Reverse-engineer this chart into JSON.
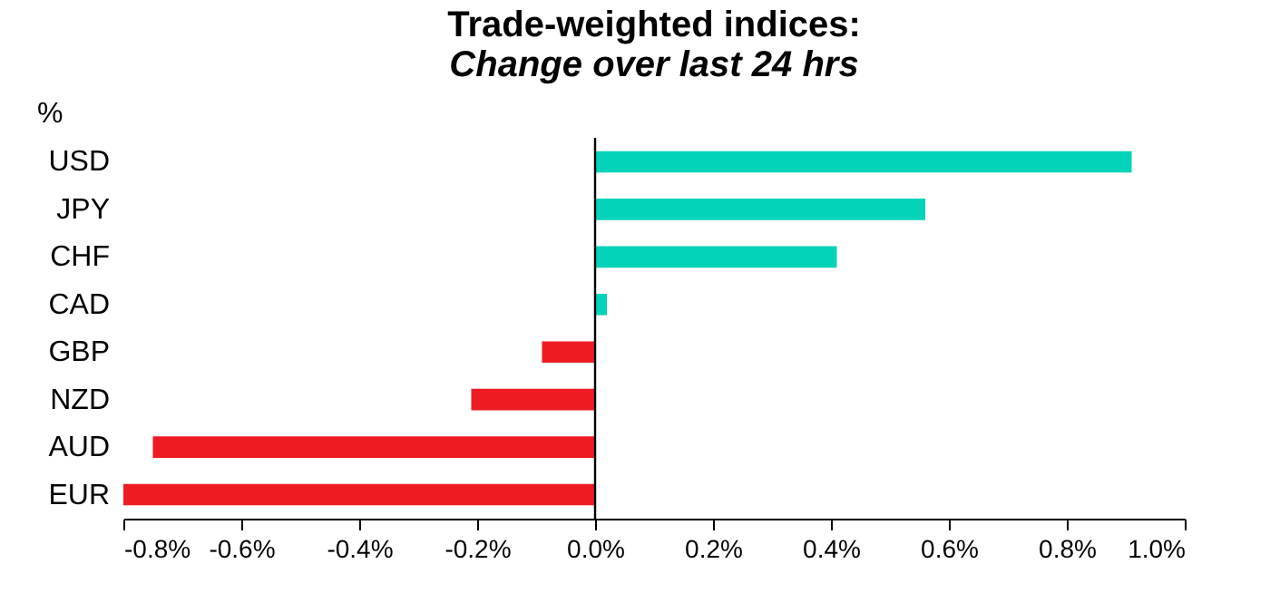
{
  "chart_data": {
    "type": "bar",
    "orientation": "horizontal",
    "title": "Trade-weighted indices:",
    "subtitle": "Change over last 24 hrs",
    "ylabel": "%",
    "categories": [
      "USD",
      "JPY",
      "CHF",
      "CAD",
      "GBP",
      "NZD",
      "AUD",
      "EUR"
    ],
    "values": [
      0.91,
      0.56,
      0.41,
      0.02,
      -0.09,
      -0.21,
      -0.75,
      -0.8
    ],
    "colors": [
      "#03d3b8",
      "#03d3b8",
      "#03d3b8",
      "#03d3b8",
      "#ed1c24",
      "#ed1c24",
      "#ed1c24",
      "#ed1c24"
    ],
    "xlim": [
      -0.8,
      1.0
    ],
    "xticks": [
      {
        "value": -0.8,
        "label": "-0.8%"
      },
      {
        "value": -0.6,
        "label": "-0.6%"
      },
      {
        "value": -0.4,
        "label": "-0.4%"
      },
      {
        "value": -0.2,
        "label": "-0.2%"
      },
      {
        "value": 0,
        "label": "0.0%"
      },
      {
        "value": 0.2,
        "label": "0.2%"
      },
      {
        "value": 0.4,
        "label": "0.4%"
      },
      {
        "value": 0.6,
        "label": "0.6%"
      },
      {
        "value": 0.8,
        "label": "0.8%"
      },
      {
        "value": 1.0,
        "label": "1.0%"
      }
    ],
    "tick_labels": true
  }
}
